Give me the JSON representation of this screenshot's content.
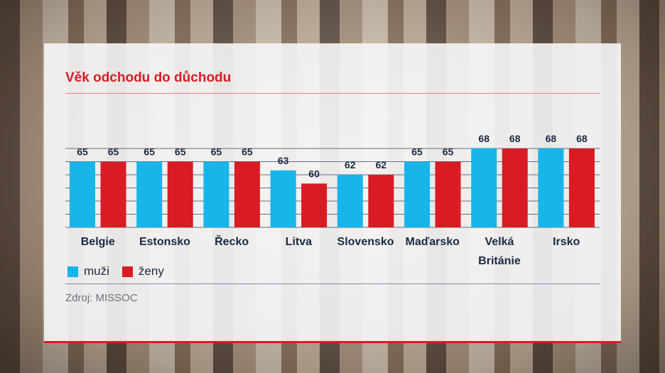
{
  "chart_data": {
    "type": "bar",
    "title": "Věk odchodu do důchodu",
    "categories": [
      [
        "Belgie"
      ],
      [
        "Estonsko"
      ],
      [
        "Řecko"
      ],
      [
        "Litva"
      ],
      [
        "Slovensko"
      ],
      [
        "Maďarsko"
      ],
      [
        "Velká",
        "Británie"
      ],
      [
        "Irsko"
      ]
    ],
    "series": [
      {
        "name": "muži",
        "color": "#16b5ea",
        "values": [
          65,
          65,
          65,
          63,
          62,
          65,
          68,
          68
        ]
      },
      {
        "name": "ženy",
        "color": "#d91c24",
        "values": [
          65,
          65,
          65,
          60,
          62,
          65,
          68,
          68
        ]
      }
    ],
    "ylim": [
      50,
      68
    ],
    "grid": true,
    "legend": "bottom-left",
    "source": "Zdroj: MISSOC"
  }
}
